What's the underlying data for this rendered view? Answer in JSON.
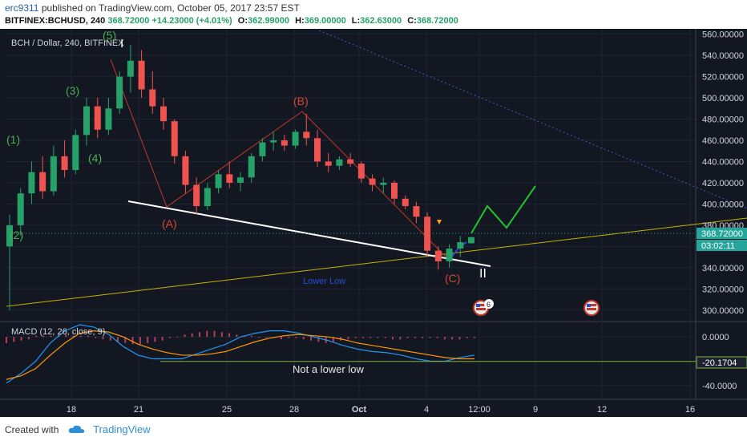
{
  "header": {
    "author": "erc9311",
    "published": "published on TradingView.com, October 05, 2017 23:57 EST",
    "symbol": "BITFINEX:BCHUSD, 240",
    "last": "368.72000",
    "change": "+14.23000 (+4.01%)",
    "o_label": "O:",
    "o": "362.99000",
    "h_label": "H:",
    "h": "369.00000",
    "l_label": "L:",
    "l": "362.63000",
    "c_label": "C:",
    "c": "368.72000"
  },
  "footer": {
    "created_with": "Created with",
    "brand": "TradingView"
  },
  "chart_data": [
    {
      "type": "candlestick",
      "title": "BCH / Dollar, 240, BITFINEX",
      "ylim": [
        290,
        565
      ],
      "y_ticks": [
        "560.00000",
        "540.00000",
        "520.00000",
        "500.00000",
        "480.00000",
        "460.00000",
        "440.00000",
        "420.00000",
        "400.00000",
        "380.00000",
        "360.00000",
        "340.00000",
        "320.00000",
        "300.00000"
      ],
      "x_ticks": [
        "18",
        "21",
        "25",
        "28",
        "Oct",
        "4",
        "12:00",
        "9",
        "12",
        "16"
      ],
      "last_price_label": "368.72000",
      "countdown_label": "03:02:11",
      "series": [
        {
          "values": [
            {
              "o": 360,
              "h": 390,
              "l": 300,
              "c": 380
            },
            {
              "o": 380,
              "h": 415,
              "l": 370,
              "c": 410
            },
            {
              "o": 410,
              "h": 440,
              "l": 400,
              "c": 430
            },
            {
              "o": 430,
              "h": 445,
              "l": 405,
              "c": 412
            },
            {
              "o": 412,
              "h": 455,
              "l": 408,
              "c": 445
            },
            {
              "o": 445,
              "h": 460,
              "l": 425,
              "c": 432
            },
            {
              "o": 432,
              "h": 470,
              "l": 428,
              "c": 465
            },
            {
              "o": 465,
              "h": 500,
              "l": 455,
              "c": 492
            },
            {
              "o": 492,
              "h": 500,
              "l": 462,
              "c": 470
            },
            {
              "o": 470,
              "h": 500,
              "l": 465,
              "c": 490
            },
            {
              "o": 490,
              "h": 525,
              "l": 485,
              "c": 520
            },
            {
              "o": 520,
              "h": 550,
              "l": 505,
              "c": 535
            },
            {
              "o": 535,
              "h": 545,
              "l": 500,
              "c": 508
            },
            {
              "o": 508,
              "h": 525,
              "l": 485,
              "c": 492
            },
            {
              "o": 492,
              "h": 500,
              "l": 470,
              "c": 478
            },
            {
              "o": 478,
              "h": 480,
              "l": 438,
              "c": 445
            },
            {
              "o": 445,
              "h": 450,
              "l": 410,
              "c": 418
            },
            {
              "o": 418,
              "h": 425,
              "l": 390,
              "c": 398
            },
            {
              "o": 398,
              "h": 420,
              "l": 394,
              "c": 415
            },
            {
              "o": 415,
              "h": 432,
              "l": 410,
              "c": 428
            },
            {
              "o": 428,
              "h": 440,
              "l": 415,
              "c": 420
            },
            {
              "o": 420,
              "h": 430,
              "l": 412,
              "c": 425
            },
            {
              "o": 425,
              "h": 448,
              "l": 420,
              "c": 445
            },
            {
              "o": 445,
              "h": 462,
              "l": 440,
              "c": 458
            },
            {
              "o": 458,
              "h": 468,
              "l": 450,
              "c": 460
            },
            {
              "o": 460,
              "h": 465,
              "l": 450,
              "c": 455
            },
            {
              "o": 455,
              "h": 470,
              "l": 452,
              "c": 468
            },
            {
              "o": 468,
              "h": 485,
              "l": 455,
              "c": 462
            },
            {
              "o": 462,
              "h": 470,
              "l": 435,
              "c": 440
            },
            {
              "o": 440,
              "h": 448,
              "l": 430,
              "c": 436
            },
            {
              "o": 436,
              "h": 445,
              "l": 432,
              "c": 442
            },
            {
              "o": 442,
              "h": 448,
              "l": 435,
              "c": 438
            },
            {
              "o": 438,
              "h": 440,
              "l": 420,
              "c": 424
            },
            {
              "o": 424,
              "h": 428,
              "l": 412,
              "c": 418
            },
            {
              "o": 418,
              "h": 425,
              "l": 410,
              "c": 420
            },
            {
              "o": 420,
              "h": 422,
              "l": 400,
              "c": 405
            },
            {
              "o": 405,
              "h": 408,
              "l": 395,
              "c": 398
            },
            {
              "o": 398,
              "h": 402,
              "l": 382,
              "c": 388
            },
            {
              "o": 388,
              "h": 392,
              "l": 350,
              "c": 356
            },
            {
              "o": 356,
              "h": 360,
              "l": 338,
              "c": 346
            },
            {
              "o": 346,
              "h": 362,
              "l": 340,
              "c": 358
            },
            {
              "o": 358,
              "h": 370,
              "l": 350,
              "c": 364
            },
            {
              "o": 362.99,
              "h": 369,
              "l": 362.63,
              "c": 368.72
            }
          ]
        }
      ],
      "annotations": {
        "wave_top": "(5)",
        "wave_3": "(3)",
        "wave_1": "(1)",
        "wave_4": "(4)",
        "wave_2": "(2)",
        "wave_a": "(A)",
        "wave_b": "(B)",
        "wave_c": "(C)",
        "degree_i": "I",
        "degree_ii": "II",
        "support_label": "Lower Low",
        "event_count": "6"
      }
    },
    {
      "type": "line",
      "title": "MACD (12, 26, close, 9)",
      "ylim": [
        -50,
        12
      ],
      "y_ticks": [
        "0.0000",
        "-40.0000"
      ],
      "current_label": "-20.1704",
      "annotation": "Not a lower low",
      "series": [
        {
          "values": [
            -38,
            -30,
            -20,
            -5,
            5,
            10,
            8,
            2,
            -8,
            -15,
            -18,
            -18,
            -18,
            -14,
            -10,
            -6,
            0,
            3,
            5,
            5,
            3,
            0,
            -3,
            -7,
            -10,
            -12,
            -13,
            -15,
            -18,
            -20,
            -20,
            -17,
            -15
          ]
        },
        {
          "values": [
            -35,
            -32,
            -26,
            -15,
            -5,
            3,
            5,
            4,
            0,
            -6,
            -10,
            -13,
            -15,
            -15,
            -14,
            -12,
            -8,
            -4,
            -1,
            1,
            2,
            1,
            0,
            -2,
            -5,
            -7,
            -9,
            -11,
            -13,
            -15,
            -17,
            -18,
            -18
          ]
        }
      ],
      "histogram": [
        -5,
        -4,
        -3,
        -2,
        1,
        1,
        1,
        2,
        2,
        1,
        1,
        1,
        -1,
        -2,
        -3,
        -4,
        -5,
        -6,
        -6,
        -5,
        -4,
        -3,
        -1,
        0,
        2,
        3,
        4,
        5,
        5,
        4,
        3,
        2,
        1,
        1,
        0,
        0,
        -1,
        -2,
        -1,
        -1,
        -2,
        -3,
        -4,
        -5,
        -4,
        -3,
        -2,
        -1,
        -1,
        -1,
        -1,
        -1,
        -2,
        -2,
        -1,
        -1,
        -1,
        -1,
        -1,
        -2,
        -2,
        -2,
        -1,
        -1
      ]
    }
  ]
}
